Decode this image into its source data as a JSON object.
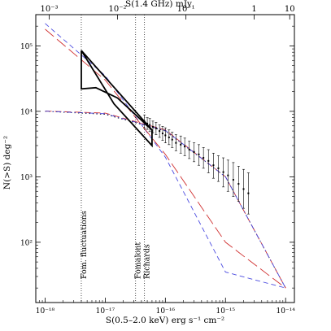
{
  "chart_data": {
    "type": "line",
    "x_axis": {
      "label": "S(0.5–2.0 keV)   erg s⁻¹ cm⁻²",
      "scale": "log",
      "range": [
        7e-19,
        1.4e-14
      ],
      "reversed": true,
      "ticks": [
        {
          "value": 1e-18,
          "label": "10⁻¹⁸"
        },
        {
          "value": 1e-17,
          "label": "10⁻¹⁷"
        },
        {
          "value": 1e-16,
          "label": "10⁻¹⁶"
        },
        {
          "value": 1e-15,
          "label": "10⁻¹⁵"
        },
        {
          "value": 1e-14,
          "label": "10⁻¹⁴"
        }
      ]
    },
    "top_axis": {
      "label": "S(1.4 GHz)    mJy",
      "scale": "log",
      "ticks": [
        {
          "value": 0.001,
          "x_equiv": 1.17e-18,
          "label": "10⁻³"
        },
        {
          "value": 0.01,
          "x_equiv": 1.6e-17,
          "label": "10⁻²"
        },
        {
          "value": 0.1,
          "x_equiv": 2.2e-16,
          "label": "10⁻¹"
        },
        {
          "value": 1,
          "x_equiv": 3e-15,
          "label": "1"
        },
        {
          "value": 10,
          "x_equiv": 1.17e-14,
          "label": "10"
        }
      ]
    },
    "y_axis": {
      "label": "N(>S)    deg⁻²",
      "scale": "log",
      "range": [
        12,
        300000
      ],
      "ticks": [
        {
          "value": 100,
          "label": "10²"
        },
        {
          "value": 1000,
          "label": "10³"
        },
        {
          "value": 10000,
          "label": "10⁴"
        },
        {
          "value": 100000,
          "label": "10⁵"
        }
      ]
    },
    "series": [
      {
        "style": "blue-dashed",
        "color": "#4a4ae0",
        "points": [
          [
            1e-14,
            20
          ],
          [
            1e-15,
            35
          ],
          [
            1e-16,
            2000
          ],
          [
            1e-17,
            35000
          ],
          [
            1e-18,
            220000
          ]
        ]
      },
      {
        "style": "red-long-dashed",
        "color": "#d03030",
        "points": [
          [
            1e-14,
            20
          ],
          [
            1e-15,
            100
          ],
          [
            1e-16,
            2200
          ],
          [
            1e-17,
            30000
          ],
          [
            1e-18,
            180000
          ]
        ]
      },
      {
        "style": "black-dotted",
        "color": "#000000",
        "points": [
          [
            1e-14,
            20
          ],
          [
            1e-15,
            1000
          ],
          [
            1e-16,
            5000
          ],
          [
            1e-17,
            9000
          ],
          [
            1e-18,
            10000
          ]
        ]
      },
      {
        "style": "red-dashed",
        "color": "#d03030",
        "points": [
          [
            1e-14,
            20
          ],
          [
            1e-15,
            1000
          ],
          [
            1e-16,
            5200
          ],
          [
            1e-17,
            9400
          ],
          [
            1e-18,
            10100
          ]
        ]
      },
      {
        "style": "blue-dot-dashed",
        "color": "#4a4ae0",
        "points": [
          [
            1e-14,
            20
          ],
          [
            1e-15,
            1000
          ],
          [
            1e-16,
            5100
          ],
          [
            1e-17,
            9200
          ],
          [
            1e-18,
            10050
          ]
        ]
      }
    ],
    "fluctuation_region": [
      [
        4e-18,
        85000
      ],
      [
        4e-18,
        22000
      ],
      [
        7e-18,
        23000
      ],
      [
        1.6e-17,
        16000
      ],
      [
        6e-17,
        5200
      ],
      [
        6e-17,
        3000
      ],
      [
        1.4e-17,
        13000
      ],
      [
        4e-18,
        85000
      ]
    ],
    "fluctuation_upper": [
      [
        4e-18,
        85000
      ],
      [
        6e-17,
        5200
      ]
    ],
    "observed_points": [
      {
        "x": 4.5e-17,
        "y": 7000,
        "lo": 5500,
        "hi": 8800
      },
      {
        "x": 5e-17,
        "y": 6500,
        "lo": 5300,
        "hi": 8000
      },
      {
        "x": 5.5e-17,
        "y": 6200,
        "lo": 4900,
        "hi": 7800
      },
      {
        "x": 6.2e-17,
        "y": 5800,
        "lo": 4700,
        "hi": 7100
      },
      {
        "x": 7e-17,
        "y": 5500,
        "lo": 4400,
        "hi": 6800
      },
      {
        "x": 8e-17,
        "y": 5000,
        "lo": 4000,
        "hi": 6200
      },
      {
        "x": 9e-17,
        "y": 4600,
        "lo": 3600,
        "hi": 5900
      },
      {
        "x": 1e-16,
        "y": 4300,
        "lo": 3300,
        "hi": 5600
      },
      {
        "x": 1.15e-16,
        "y": 4000,
        "lo": 3100,
        "hi": 5200
      },
      {
        "x": 1.3e-16,
        "y": 3700,
        "lo": 2800,
        "hi": 4800
      },
      {
        "x": 1.5e-16,
        "y": 3300,
        "lo": 2500,
        "hi": 4400
      },
      {
        "x": 1.8e-16,
        "y": 3100,
        "lo": 2300,
        "hi": 4200
      },
      {
        "x": 2.1e-16,
        "y": 2900,
        "lo": 2100,
        "hi": 3900
      },
      {
        "x": 2.5e-16,
        "y": 2600,
        "lo": 1900,
        "hi": 3500
      },
      {
        "x": 3e-16,
        "y": 2400,
        "lo": 1700,
        "hi": 3300
      },
      {
        "x": 3.6e-16,
        "y": 2200,
        "lo": 1500,
        "hi": 3100
      },
      {
        "x": 4.3e-16,
        "y": 1950,
        "lo": 1350,
        "hi": 2800
      },
      {
        "x": 5.2e-16,
        "y": 1750,
        "lo": 1150,
        "hi": 2600
      },
      {
        "x": 6.3e-16,
        "y": 1500,
        "lo": 950,
        "hi": 2300
      },
      {
        "x": 7.6e-16,
        "y": 1350,
        "lo": 850,
        "hi": 2100
      },
      {
        "x": 9.2e-16,
        "y": 1180,
        "lo": 700,
        "hi": 1950
      },
      {
        "x": 1.1e-15,
        "y": 1050,
        "lo": 600,
        "hi": 1800
      },
      {
        "x": 1.35e-15,
        "y": 900,
        "lo": 500,
        "hi": 1650
      },
      {
        "x": 1.65e-15,
        "y": 780,
        "lo": 420,
        "hi": 1450
      },
      {
        "x": 2e-15,
        "y": 650,
        "lo": 330,
        "hi": 1300
      },
      {
        "x": 2.4e-15,
        "y": 560,
        "lo": 270,
        "hi": 1150
      }
    ],
    "vertical_markers": [
      {
        "x": 4e-18,
        "label": "Fom. fluctuations"
      },
      {
        "x": 3.2e-17,
        "label": "Fomalont"
      },
      {
        "x": 4.5e-17,
        "label": "Richards"
      }
    ]
  }
}
